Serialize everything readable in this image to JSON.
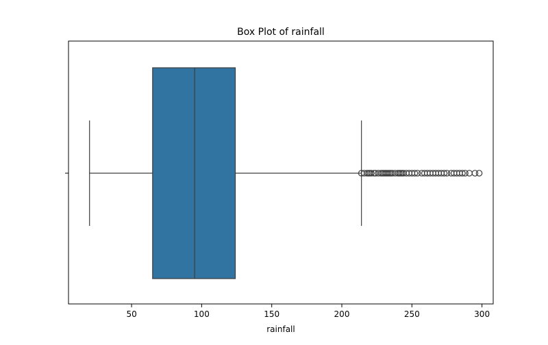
{
  "chart_data": {
    "type": "box",
    "title": "Box Plot of rainfall",
    "xlabel": "rainfall",
    "ylabel": "",
    "orientation": "horizontal",
    "xlim": [
      5,
      308
    ],
    "xticks": [
      50,
      100,
      150,
      200,
      250,
      300
    ],
    "xtick_labels": [
      "50",
      "100",
      "150",
      "200",
      "250",
      "300"
    ],
    "yticks": [
      ""
    ],
    "box": {
      "whisker_low": 20,
      "q1": 65,
      "median": 95,
      "q3": 124,
      "whisker_high": 214
    },
    "outliers": [
      214,
      216,
      218,
      219,
      220,
      221,
      223,
      224,
      226,
      228,
      229,
      230,
      231,
      232,
      233,
      234,
      235,
      236,
      238,
      240,
      241,
      242,
      243,
      244,
      246,
      248,
      250,
      252,
      254,
      257,
      259,
      261,
      263,
      265,
      267,
      269,
      271,
      273,
      275,
      278,
      280,
      282,
      284,
      286,
      288,
      291,
      295,
      298
    ],
    "colors": {
      "box_fill": "#3274a1",
      "line": "#3d3d3d",
      "axes": "#000000"
    },
    "grid": false,
    "legend": "none"
  }
}
